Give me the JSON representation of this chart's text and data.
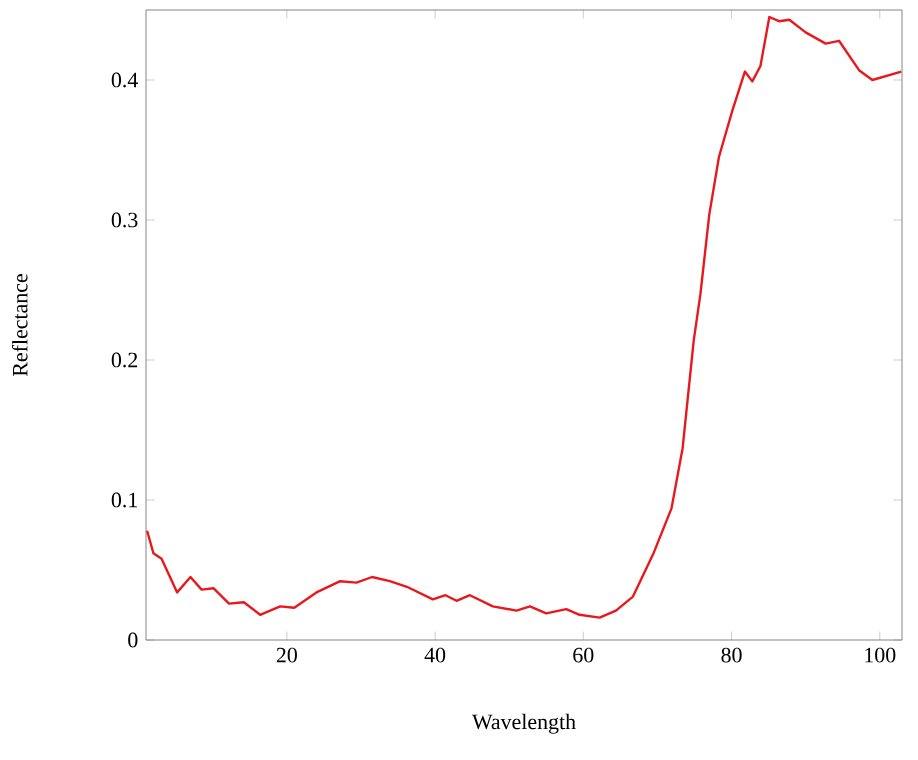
{
  "chart_data": {
    "type": "line",
    "xlabel": "Wavelength",
    "ylabel": "Reflectance",
    "xlim": [
      1,
      103
    ],
    "ylim": [
      0,
      0.45
    ],
    "xticks": [
      20,
      40,
      60,
      80,
      100
    ],
    "yticks": [
      0,
      0.1,
      0.2,
      0.3,
      0.4
    ],
    "grid": false,
    "marker": "none",
    "line_style": "solid",
    "series": [
      {
        "color": "#e8191c",
        "x": [
          1.15,
          2,
          3.1,
          5.2,
          7,
          8.5,
          10.1,
          12.2,
          14.2,
          16.4,
          19.1,
          21,
          24,
          27.2,
          29.4,
          31.5,
          33.9,
          36.2,
          39.7,
          41.4,
          42.9,
          44.7,
          47.8,
          51,
          52.8,
          55,
          57.7,
          59.5,
          62.2,
          64.4,
          66.7,
          69.4,
          71.9,
          73.4,
          74.9,
          75.8,
          77,
          78.3,
          80.1,
          81.8,
          82.8,
          83.9,
          85.1,
          86.4,
          87.8,
          90,
          92.7,
          94.5,
          97.2,
          99,
          102.9
        ],
        "values": [
          0.078,
          0.062,
          0.058,
          0.034,
          0.045,
          0.036,
          0.037,
          0.026,
          0.027,
          0.018,
          0.024,
          0.023,
          0.034,
          0.042,
          0.041,
          0.045,
          0.042,
          0.038,
          0.029,
          0.032,
          0.028,
          0.032,
          0.024,
          0.021,
          0.024,
          0.019,
          0.022,
          0.018,
          0.016,
          0.021,
          0.031,
          0.061,
          0.094,
          0.137,
          0.214,
          0.247,
          0.304,
          0.345,
          0.378,
          0.406,
          0.399,
          0.41,
          0.445,
          0.442,
          0.443,
          0.434,
          0.426,
          0.428,
          0.407,
          0.4,
          0.406
        ]
      }
    ]
  }
}
